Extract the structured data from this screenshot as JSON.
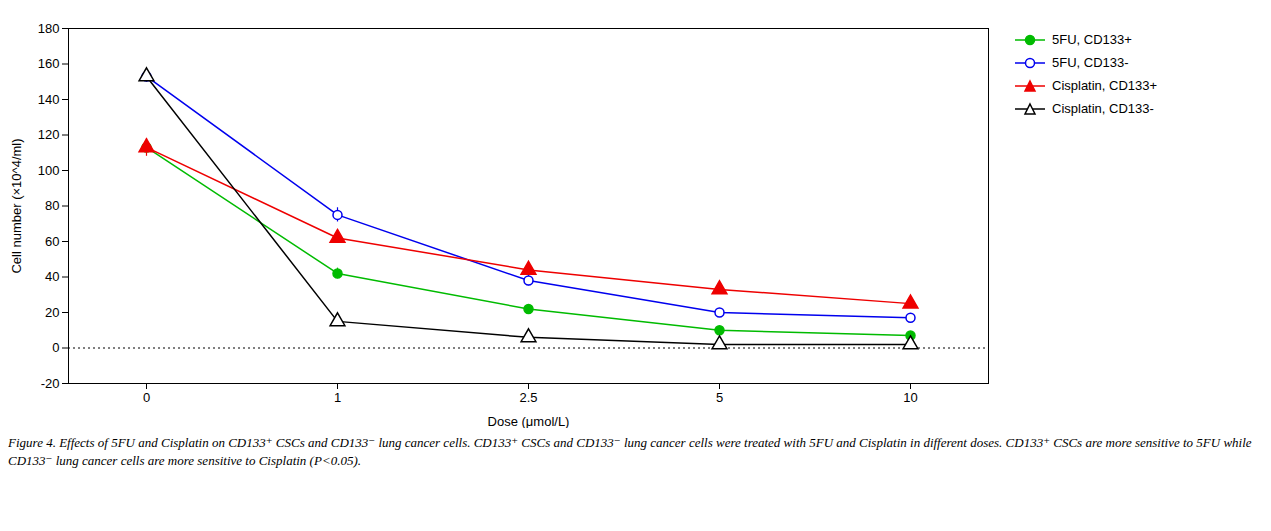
{
  "chart_data": {
    "type": "line",
    "xlabel": "Dose (μmol/L)",
    "ylabel": "Cell number (×10^4/ml)",
    "categories": [
      "0",
      "1",
      "2.5",
      "5",
      "10"
    ],
    "series": [
      {
        "name": "5FU, CD133+",
        "color": "#00bb00",
        "marker": "circle",
        "values": [
          113,
          42,
          22,
          10,
          7
        ],
        "errors": [
          3,
          3,
          2,
          2,
          1
        ]
      },
      {
        "name": "5FU, CD133-",
        "color": "#0000ee",
        "marker": "circle_open",
        "values": [
          153,
          75,
          38,
          20,
          17
        ],
        "errors": [
          3,
          4,
          3,
          2,
          2
        ]
      },
      {
        "name": "Cisplatin, CD133+",
        "color": "#ee0000",
        "marker": "triangle",
        "values": [
          113,
          62,
          44,
          33,
          25
        ],
        "errors": [
          5,
          3,
          3,
          2,
          2
        ]
      },
      {
        "name": "Cisplatin, CD133-",
        "color": "#000000",
        "marker": "triangle_open",
        "values": [
          153,
          15,
          6,
          2,
          2
        ],
        "errors": [
          3,
          2,
          2,
          1,
          1
        ]
      }
    ],
    "ylim": [
      -20,
      180
    ],
    "yticks": [
      -20,
      0,
      20,
      40,
      60,
      80,
      100,
      120,
      140,
      160,
      180
    ],
    "annotations": [
      {
        "y": 0,
        "line_style": "dotted"
      }
    ],
    "grid": false,
    "legend": "upper right",
    "caption": "Figure 4. Effects of 5FU and Cisplatin on CD133⁺ CSCs and CD133⁻ lung cancer cells. CD133⁺ CSCs and CD133⁻ lung cancer cells were treated with 5FU and Cisplatin in different doses. CD133⁺ CSCs are more sensitive to 5FU while CD133⁻ lung cancer cells are more sensitive to Cisplatin (P<0.05)."
  }
}
